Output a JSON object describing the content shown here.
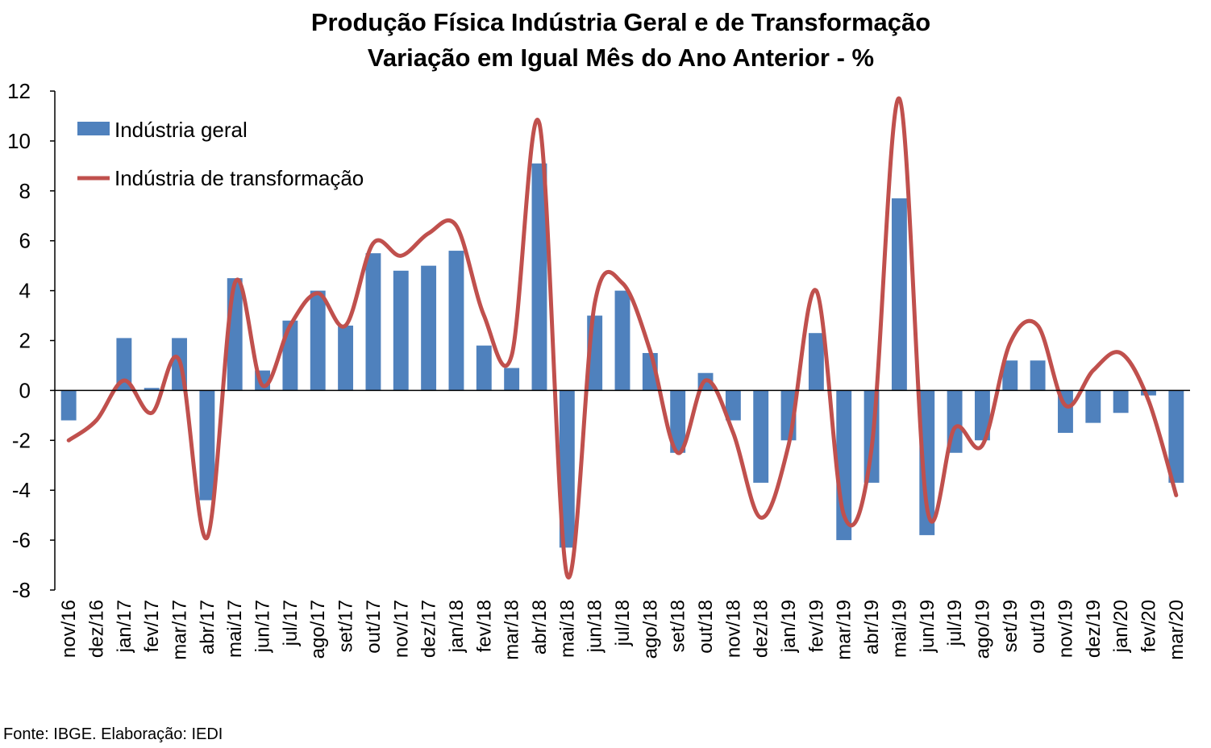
{
  "title": "Produção Física Indústria Geral e de Transformação",
  "subtitle": "Variação em Igual Mês do Ano Anterior - %",
  "source": "Fonte: IBGE. Elaboração: IEDI",
  "colors": {
    "bar": "#4f81bd",
    "line": "#c0504d",
    "axis": "#000000"
  },
  "chart_data": {
    "type": "bar",
    "categories": [
      "nov/16",
      "dez/16",
      "jan/17",
      "fev/17",
      "mar/17",
      "abr/17",
      "mai/17",
      "jun/17",
      "jul/17",
      "ago/17",
      "set/17",
      "out/17",
      "nov/17",
      "dez/17",
      "jan/18",
      "fev/18",
      "mar/18",
      "abr/18",
      "mai/18",
      "jun/18",
      "jul/18",
      "ago/18",
      "set/18",
      "out/18",
      "nov/18",
      "dez/18",
      "jan/19",
      "fev/19",
      "mar/19",
      "abr/19",
      "mai/19",
      "jun/19",
      "jul/19",
      "ago/19",
      "set/19",
      "out/19",
      "nov/19",
      "dez/19",
      "jan/20",
      "fev/20",
      "mar/20"
    ],
    "series": [
      {
        "name": "Indústria geral",
        "type": "bar",
        "values": [
          -1.2,
          0,
          2.1,
          0.1,
          2.1,
          -4.4,
          4.5,
          0.8,
          2.8,
          4.0,
          2.6,
          5.5,
          4.8,
          5.0,
          5.6,
          1.8,
          0.9,
          9.1,
          -6.3,
          3.0,
          4.0,
          1.5,
          -2.5,
          0.7,
          -1.2,
          -3.7,
          -2.0,
          2.3,
          -6.0,
          -3.7,
          7.7,
          -5.8,
          -2.5,
          -2.0,
          1.2,
          1.2,
          -1.7,
          -1.3,
          -0.9,
          -0.2,
          -3.7
        ]
      },
      {
        "name": "Indústria de transformação",
        "type": "line",
        "values": [
          -2.0,
          -1.2,
          0.4,
          -0.9,
          1.2,
          -5.9,
          4.3,
          0.2,
          2.6,
          3.9,
          2.6,
          5.9,
          5.4,
          6.3,
          6.6,
          3.0,
          1.4,
          10.7,
          -7.4,
          3.5,
          4.3,
          1.6,
          -2.5,
          0.4,
          -1.7,
          -5.1,
          -2.2,
          4.0,
          -5.0,
          -2.3,
          11.7,
          -4.7,
          -1.5,
          -2.2,
          1.9,
          2.6,
          -0.6,
          0.8,
          1.5,
          -0.4,
          -4.2
        ]
      }
    ],
    "yticks": [
      "-8",
      "-6",
      "-4",
      "-2",
      "0",
      "2",
      "4",
      "6",
      "8",
      "10",
      "12"
    ],
    "ylim": [
      -8,
      12
    ],
    "grid": false,
    "legend": "top-left"
  }
}
